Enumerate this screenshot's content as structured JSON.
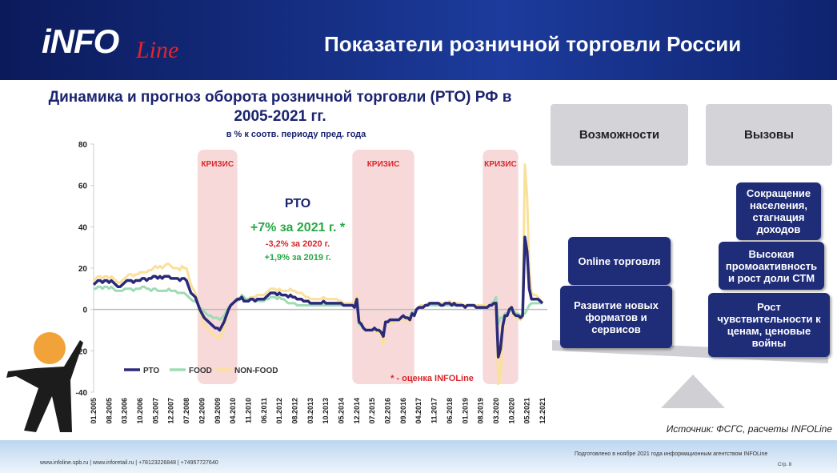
{
  "header": {
    "logo_main": "iNFO",
    "logo_script": "Line",
    "title": "Показатели розничной торговли России"
  },
  "chart_data": {
    "type": "line",
    "title": "Динамика и прогноз оборота розничной торговли (РТО) РФ в 2005-2021 гг.",
    "subtitle": "в % к соотв. периоду пред. года",
    "categories": [
      "01.2005",
      null,
      null,
      null,
      null,
      null,
      null,
      "08.2005",
      null,
      null,
      null,
      null,
      null,
      null,
      "03.2006",
      null,
      null,
      null,
      null,
      null,
      null,
      "10.2006",
      null,
      null,
      null,
      null,
      null,
      null,
      "05.2007",
      null,
      null,
      null,
      null,
      null,
      null,
      "12.2007",
      null,
      null,
      null,
      null,
      null,
      null,
      "07.2008",
      null,
      null,
      null,
      null,
      null,
      null,
      "02.2009",
      null,
      null,
      null,
      null,
      null,
      null,
      "09.2009",
      null,
      null,
      null,
      null,
      null,
      null,
      "04.2010",
      null,
      null,
      null,
      null,
      null,
      null,
      "11.2010",
      null,
      null,
      null,
      null,
      null,
      null,
      "06.2011",
      null,
      null,
      null,
      null,
      null,
      null,
      "01.2012",
      null,
      null,
      null,
      null,
      null,
      null,
      "08.2012",
      null,
      null,
      null,
      null,
      null,
      null,
      "03.2013",
      null,
      null,
      null,
      null,
      null,
      null,
      "10.2013",
      null,
      null,
      null,
      null,
      null,
      null,
      "05.2014",
      null,
      null,
      null,
      null,
      null,
      null,
      "12.2014",
      null,
      null,
      null,
      null,
      null,
      null,
      "07.2015",
      null,
      null,
      null,
      null,
      null,
      null,
      "02.2016",
      null,
      null,
      null,
      null,
      null,
      null,
      "09.2016",
      null,
      null,
      null,
      null,
      null,
      null,
      "04.2017",
      null,
      null,
      null,
      null,
      null,
      null,
      "11.2017",
      null,
      null,
      null,
      null,
      null,
      null,
      "06.2018",
      null,
      null,
      null,
      null,
      null,
      null,
      "01.2019",
      null,
      null,
      null,
      null,
      null,
      null,
      "08.2019",
      null,
      null,
      null,
      null,
      null,
      null,
      "03.2020",
      null,
      null,
      null,
      null,
      null,
      null,
      "10.2020",
      null,
      null,
      null,
      null,
      null,
      null,
      "05.2021",
      null,
      null,
      null,
      null,
      null,
      null,
      "12.2021"
    ],
    "series": [
      {
        "name": "РТО",
        "color": "#2b2a7a",
        "values": [
          12,
          13,
          14,
          14,
          13,
          14,
          14,
          13,
          14,
          13,
          12,
          11,
          11,
          12,
          13,
          14,
          14,
          14,
          13,
          14,
          14,
          14,
          15,
          15,
          14,
          15,
          15,
          16,
          16,
          15,
          16,
          15,
          16,
          16,
          16,
          15,
          15,
          15,
          15,
          14,
          15,
          15,
          14,
          11,
          8,
          7,
          6,
          3,
          0,
          -2,
          -4,
          -5,
          -6,
          -7,
          -8,
          -9,
          -9,
          -10,
          -8,
          -6,
          -3,
          0,
          2,
          3,
          4,
          5,
          5,
          6,
          4,
          4,
          4,
          5,
          5,
          4,
          5,
          5,
          5,
          5,
          6,
          7,
          8,
          8,
          8,
          7,
          8,
          7,
          7,
          7,
          6,
          7,
          6,
          6,
          5,
          5,
          5,
          4,
          4,
          4,
          3,
          3,
          3,
          3,
          3,
          3,
          4,
          3,
          3,
          3,
          3,
          3,
          3,
          3,
          3,
          2,
          2,
          2,
          2,
          2,
          1,
          5,
          -6,
          -7,
          -9,
          -10,
          -10,
          -10,
          -10,
          -9,
          -10,
          -10,
          -11,
          -13,
          -6,
          -6,
          -5,
          -5,
          -5,
          -5,
          -5,
          -4,
          -3,
          -4,
          -4,
          -5,
          -2,
          -3,
          0,
          1,
          1,
          1,
          2,
          2,
          3,
          3,
          3,
          3,
          3,
          2,
          2,
          3,
          3,
          3,
          2,
          3,
          2,
          2,
          2,
          2,
          1,
          2,
          2,
          2,
          2,
          1,
          1,
          1,
          1,
          1,
          1,
          2,
          2,
          3,
          3,
          -23,
          -19,
          -8,
          -3,
          -3,
          0,
          1,
          -2,
          -3,
          -3,
          -4,
          -3,
          35,
          28,
          10,
          5,
          5,
          5,
          5,
          4,
          3
        ]
      },
      {
        "name": "FOOD",
        "color": "#9edcb4",
        "values": [
          10,
          10,
          11,
          11,
          10,
          11,
          11,
          10,
          11,
          10,
          9,
          9,
          9,
          9,
          10,
          10,
          10,
          10,
          9,
          10,
          10,
          10,
          11,
          11,
          10,
          10,
          9,
          10,
          10,
          9,
          9,
          9,
          9,
          9,
          10,
          9,
          9,
          9,
          8,
          8,
          8,
          8,
          7,
          6,
          5,
          4,
          4,
          3,
          1,
          0,
          -1,
          -2,
          -3,
          -3,
          -4,
          -4,
          -4,
          -5,
          -4,
          -3,
          -1,
          1,
          2,
          3,
          4,
          4,
          5,
          7,
          6,
          5,
          5,
          5,
          5,
          4,
          4,
          4,
          4,
          4,
          5,
          5,
          6,
          6,
          6,
          5,
          6,
          5,
          5,
          4,
          3,
          3,
          3,
          3,
          2,
          2,
          2,
          2,
          2,
          2,
          2,
          2,
          2,
          2,
          2,
          2,
          2,
          2,
          2,
          2,
          2,
          2,
          2,
          2,
          2,
          2,
          2,
          2,
          2,
          2,
          1,
          3,
          -7,
          -8,
          -9,
          -10,
          -10,
          -10,
          -10,
          -9,
          -10,
          -10,
          -11,
          -12,
          -6,
          -6,
          -5,
          -5,
          -5,
          -5,
          -5,
          -4,
          -3,
          -4,
          -4,
          -4,
          -1,
          -2,
          0,
          1,
          1,
          1,
          2,
          2,
          2,
          2,
          2,
          2,
          2,
          2,
          2,
          2,
          2,
          2,
          2,
          2,
          2,
          2,
          2,
          2,
          1,
          2,
          2,
          2,
          2,
          1,
          1,
          1,
          1,
          1,
          1,
          2,
          3,
          4,
          6,
          -7,
          -4,
          -4,
          -2,
          -2,
          -1,
          1,
          -1,
          -2,
          -2,
          -3,
          -2,
          -2,
          0,
          2,
          3,
          3,
          3,
          3,
          3,
          3
        ]
      },
      {
        "name": "NON-FOOD",
        "color": "#fbe09a",
        "values": [
          14,
          15,
          16,
          16,
          15,
          16,
          16,
          15,
          16,
          15,
          14,
          13,
          13,
          14,
          15,
          16,
          17,
          17,
          16,
          17,
          17,
          18,
          18,
          18,
          18,
          19,
          19,
          20,
          21,
          20,
          21,
          20,
          21,
          22,
          22,
          21,
          20,
          20,
          20,
          19,
          21,
          20,
          20,
          16,
          12,
          10,
          8,
          4,
          -1,
          -4,
          -8,
          -9,
          -10,
          -11,
          -12,
          -13,
          -13,
          -14,
          -12,
          -9,
          -4,
          -1,
          2,
          3,
          4,
          5,
          6,
          6,
          5,
          5,
          5,
          6,
          6,
          6,
          7,
          7,
          7,
          7,
          8,
          9,
          10,
          10,
          10,
          9,
          10,
          9,
          9,
          9,
          9,
          10,
          9,
          9,
          8,
          8,
          8,
          7,
          6,
          6,
          5,
          5,
          5,
          5,
          5,
          5,
          6,
          5,
          5,
          5,
          5,
          5,
          5,
          4,
          4,
          3,
          3,
          3,
          3,
          3,
          3,
          7,
          -5,
          -7,
          -9,
          -10,
          -10,
          -10,
          -10,
          -10,
          -11,
          -11,
          -12,
          -17,
          -6,
          -6,
          -6,
          -6,
          -6,
          -5,
          -5,
          -5,
          -4,
          -5,
          -5,
          -6,
          -2,
          -3,
          0,
          1,
          2,
          2,
          2,
          3,
          3,
          3,
          3,
          3,
          3,
          3,
          3,
          3,
          3,
          4,
          3,
          3,
          3,
          3,
          3,
          2,
          2,
          2,
          2,
          2,
          2,
          2,
          2,
          2,
          2,
          2,
          2,
          2,
          2,
          3,
          1,
          -36,
          -33,
          -12,
          -4,
          -3,
          1,
          1,
          -3,
          -4,
          -4,
          -5,
          -4,
          70,
          55,
          20,
          8,
          7,
          7,
          6,
          4,
          4
        ]
      }
    ],
    "ylim": [
      -40,
      80
    ],
    "yticks": [
      -40,
      -20,
      0,
      20,
      40,
      60,
      80
    ],
    "grid": false,
    "legend": "lower left",
    "shaded_regions": [
      {
        "label": "КРИЗИС",
        "start": 47,
        "end": 65
      },
      {
        "label": "КРИЗИС",
        "start": 117,
        "end": 145
      },
      {
        "label": "КРИЗИС",
        "start": 176,
        "end": 192
      }
    ],
    "annotations": [
      "РТО",
      "+7% за 2021 г. *",
      "-3,2% за 2020 г.",
      "+1,9% за 2019 г.",
      "* - оценка INFOLine"
    ]
  },
  "balance": {
    "headers": [
      "Возможности",
      "Вызовы"
    ],
    "opportunities": [
      "Online торговля",
      "Развитие новых форматов и сервисов"
    ],
    "challenges": [
      "Сокращение населения, стагнация доходов",
      "Высокая промоактивность и рост доли СТМ",
      "Рост чувствительности к ценам, ценовые войны"
    ]
  },
  "source": "Источник: ФСГС, расчеты INFOLine",
  "footer": {
    "contacts": "www.infoline.spb.ru | www.inforetail.ru | +78123226848 | +74957727640",
    "prepared": "Подготовлено в ноябре 2021 года информационным агентством INFOLine",
    "page": "Стр. 8"
  }
}
